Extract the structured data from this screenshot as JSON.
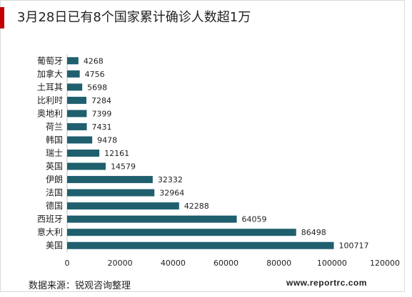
{
  "title": "3月28日已有8个国家累计确诊人数超1万",
  "source": "数据来源：锐观咨询整理",
  "website": "www.reportrc.com",
  "colors": {
    "bar": "#1f5f6e",
    "accent": "#c00000"
  },
  "chart_data": {
    "type": "bar",
    "orientation": "horizontal",
    "categories": [
      "葡萄牙",
      "加拿大",
      "土耳其",
      "比利时",
      "奥地利",
      "荷兰",
      "韩国",
      "瑞士",
      "英国",
      "伊朗",
      "法国",
      "德国",
      "西班牙",
      "意大利",
      "美国"
    ],
    "values": [
      4268,
      4756,
      5698,
      7284,
      7399,
      7431,
      9478,
      12161,
      14579,
      32332,
      32964,
      42288,
      64059,
      86498,
      100717
    ],
    "xlim": [
      0,
      120000
    ],
    "xticks": [
      0,
      20000,
      40000,
      60000,
      80000,
      100000,
      120000
    ],
    "title": "",
    "xlabel": "",
    "ylabel": "",
    "grid": false,
    "data_labels": true
  }
}
